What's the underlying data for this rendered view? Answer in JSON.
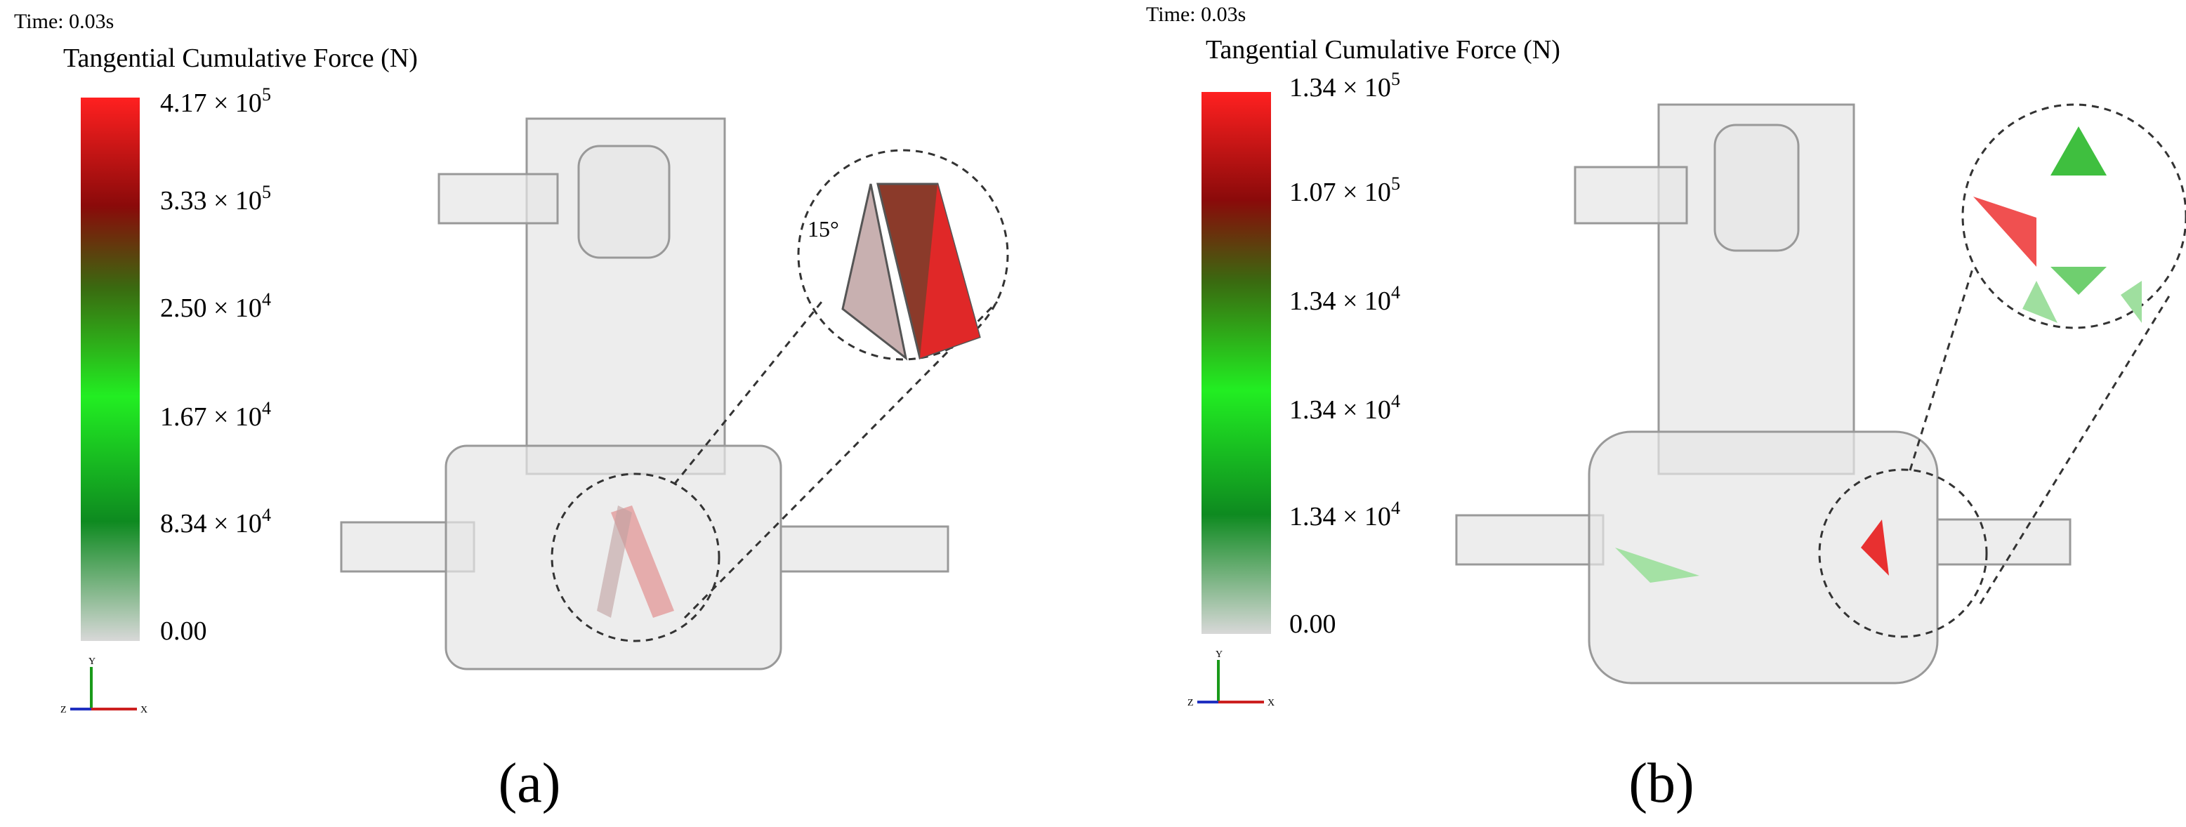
{
  "panels": [
    {
      "time": "Time: 0.03s",
      "colorbar_title": "Tangential Cumulative Force (N)",
      "ticks": [
        {
          "base": "4.17 × 10",
          "exp": "5"
        },
        {
          "base": "3.33 × 10",
          "exp": "5"
        },
        {
          "base": "2.50 × 10",
          "exp": "4"
        },
        {
          "base": "1.67 × 10",
          "exp": "4"
        },
        {
          "base": "8.34 × 10",
          "exp": "4"
        },
        {
          "base": "0.00"
        }
      ],
      "annotation": "15°",
      "axes": [
        "Y",
        "X",
        "Z"
      ],
      "label": "(a)"
    },
    {
      "time": "Time: 0.03s",
      "colorbar_title": "Tangential Cumulative Force (N)",
      "ticks": [
        {
          "base": "1.34 × 10",
          "exp": "5"
        },
        {
          "base": "1.07 × 10",
          "exp": "5"
        },
        {
          "base": "1.34 × 10",
          "exp": "4"
        },
        {
          "base": "1.34 × 10",
          "exp": "4"
        },
        {
          "base": "1.34 × 10",
          "exp": "4"
        },
        {
          "base": "0.00"
        }
      ],
      "axes": [
        "Y",
        "X",
        "Z"
      ],
      "label": "(b)"
    }
  ]
}
